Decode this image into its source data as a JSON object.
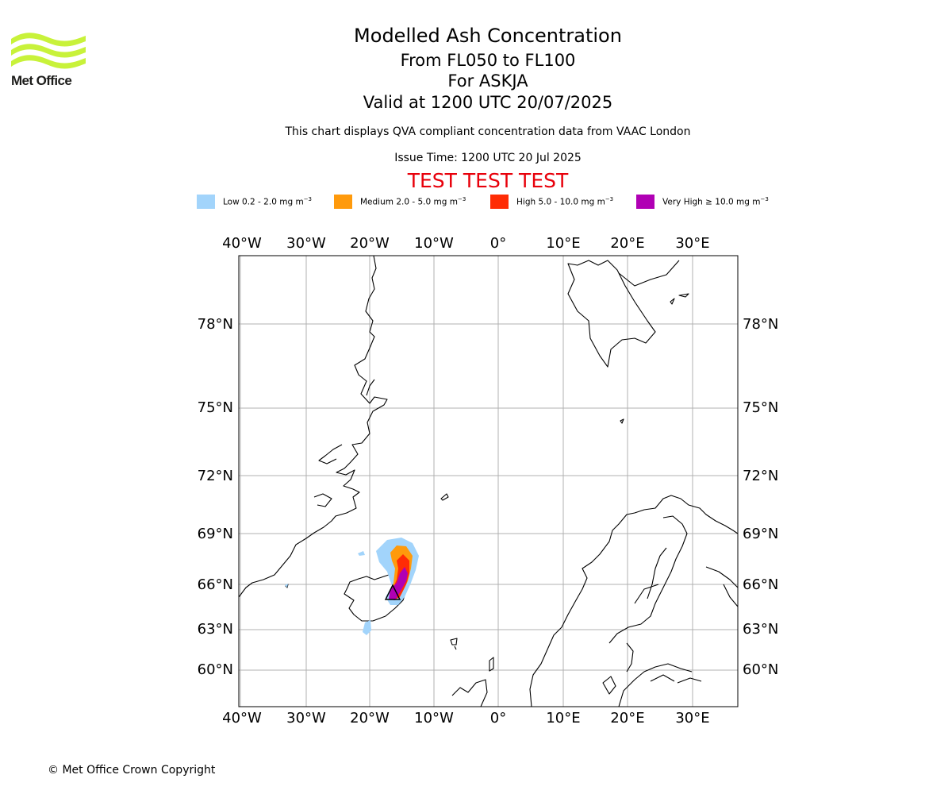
{
  "header": {
    "title": "Modelled Ash Concentration",
    "levels": "From FL050 to FL100",
    "volcano": "For ASKJA",
    "valid": "Valid at 1200 UTC 20/07/2025",
    "subtitle": "This chart displays QVA compliant concentration data from VAAC London",
    "issue_time": "Issue Time: 1200 UTC 20 Jul 2025",
    "test_banner": "TEST TEST TEST"
  },
  "logo": {
    "text": "Met Office",
    "color": "#c8f23a"
  },
  "legend": [
    {
      "label": "Low 0.2 - 2.0 mg m",
      "color": "#a2d4fb"
    },
    {
      "label": "Medium 2.0 - 5.0 mg m",
      "color": "#ff9a0c"
    },
    {
      "label": "High 5.0 - 10.0 mg m",
      "color": "#ff2c05"
    },
    {
      "label": "Very High ≥ 10.0 mg m",
      "color": "#b000b4"
    }
  ],
  "legend_unit_exp": "−3",
  "map": {
    "lon_ticks": [
      "40°W",
      "30°W",
      "20°W",
      "10°W",
      "0°",
      "10°E",
      "20°E",
      "30°E"
    ],
    "lat_ticks": [
      "78°N",
      "75°N",
      "72°N",
      "69°N",
      "66°N",
      "63°N",
      "60°N"
    ],
    "gridlines": true
  },
  "footer": {
    "copyright": "© Met Office Crown Copyright"
  }
}
